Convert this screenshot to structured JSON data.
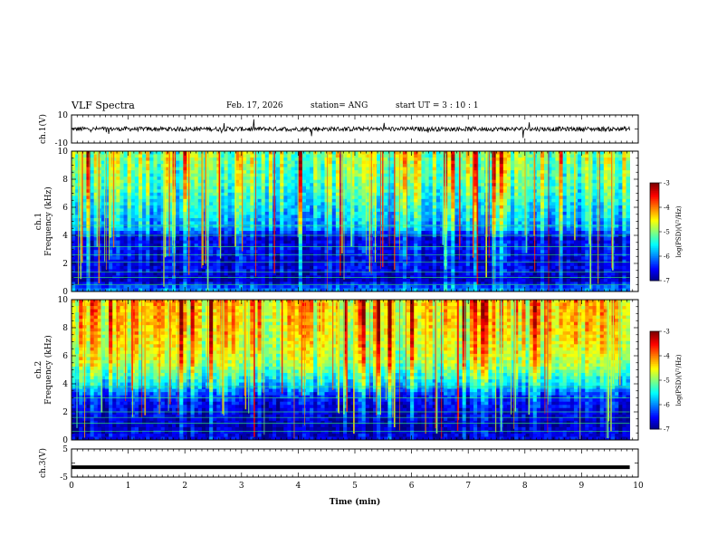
{
  "header": {
    "title": "VLF Spectra",
    "date": "Feb. 17, 2026",
    "station": "station= ANG",
    "start": "start  UT =   3  : 10 : 1"
  },
  "chart_data": [
    {
      "type": "line",
      "panel": "ch1-waveform",
      "ylabel": "ch.1(V)",
      "ylim": [
        -10,
        10
      ],
      "ytick_labels": [
        "10",
        "-10"
      ],
      "baseline": 0
    },
    {
      "type": "heatmap",
      "panel": "ch1-spectrogram",
      "ylabel": [
        "ch.1",
        "Frequency  (kHz)"
      ],
      "ylim": [
        0,
        10
      ],
      "ytick_labels": [
        "0",
        "2",
        "4",
        "6",
        "8",
        "10"
      ],
      "colorbar": {
        "label": "log(PSD)(V²/Hz)",
        "range": [
          -7,
          -3
        ],
        "tick_labels": [
          "-3",
          "-4",
          "-5",
          "-6",
          "-7"
        ]
      },
      "intensity_profile": [
        {
          "f_khz": 0.2,
          "level": 0.25
        },
        {
          "f_khz": 0.8,
          "level": 0.05
        },
        {
          "f_khz": 1.5,
          "level": 0.12
        },
        {
          "f_khz": 2.2,
          "level": 0.1
        },
        {
          "f_khz": 3.0,
          "level": 0.15
        },
        {
          "f_khz": 3.8,
          "level": 0.1
        },
        {
          "f_khz": 4.5,
          "level": 0.3
        },
        {
          "f_khz": 6.0,
          "level": 0.38
        },
        {
          "f_khz": 7.5,
          "level": 0.48
        },
        {
          "f_khz": 9.0,
          "level": 0.52
        },
        {
          "f_khz": 10.0,
          "level": 0.55
        }
      ],
      "horizontal_lines_khz": [
        0.5,
        1.0,
        1.4,
        2.1,
        2.6,
        3.2,
        4.0,
        4.7
      ]
    },
    {
      "type": "heatmap",
      "panel": "ch2-spectrogram",
      "ylabel": [
        "ch.2",
        "Frequency  (kHz)"
      ],
      "ylim": [
        0,
        10
      ],
      "ytick_labels": [
        "0",
        "2",
        "4",
        "6",
        "8",
        "10"
      ],
      "colorbar": {
        "label": "log(PSD)(V²/Hz)",
        "range": [
          -7,
          -3
        ],
        "tick_labels": [
          "-3",
          "-4",
          "-5",
          "-6",
          "-7"
        ]
      },
      "intensity_profile": [
        {
          "f_khz": 0.2,
          "level": 0.1
        },
        {
          "f_khz": 1.0,
          "level": 0.05
        },
        {
          "f_khz": 2.0,
          "level": 0.1
        },
        {
          "f_khz": 3.0,
          "level": 0.15
        },
        {
          "f_khz": 4.0,
          "level": 0.35
        },
        {
          "f_khz": 5.5,
          "level": 0.55
        },
        {
          "f_khz": 7.0,
          "level": 0.62
        },
        {
          "f_khz": 8.5,
          "level": 0.66
        },
        {
          "f_khz": 10.0,
          "level": 0.68
        }
      ],
      "horizontal_lines_khz": [
        0.6,
        1.2,
        1.6,
        2.0,
        3.0,
        3.8
      ]
    },
    {
      "type": "line",
      "panel": "ch3-waveform",
      "ylabel": "ch.3(V)",
      "ylim": [
        -5,
        5
      ],
      "ytick_labels": [
        "5",
        "-5"
      ],
      "baseline": -1.5
    }
  ],
  "xaxis": {
    "label": "Time  (min)",
    "range": [
      0,
      10
    ],
    "tick_labels": [
      "0",
      "1",
      "2",
      "3",
      "4",
      "5",
      "6",
      "7",
      "8",
      "9",
      "10"
    ]
  },
  "colors": {
    "axis": "#000000",
    "trace": "#000000",
    "background": "#ffffff"
  }
}
